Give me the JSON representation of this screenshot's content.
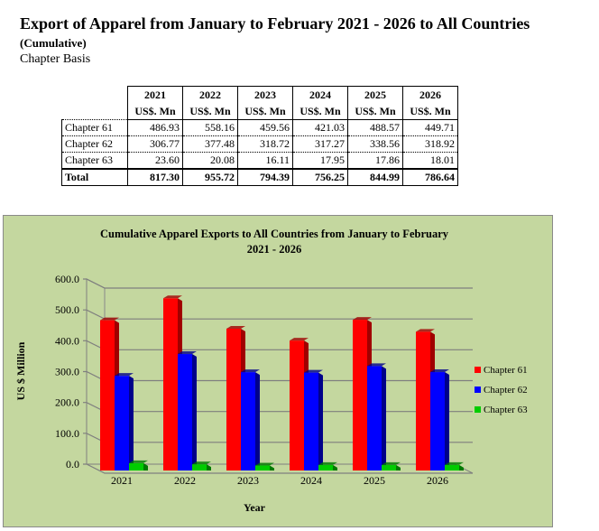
{
  "header": {
    "title": "Export of Apparel from January to February 2021 - 2026 to All Countries",
    "subtitle": "(Cumulative)",
    "basis": "Chapter Basis"
  },
  "table": {
    "years": [
      "2021",
      "2022",
      "2023",
      "2024",
      "2025",
      "2026"
    ],
    "unit": "US$. Mn",
    "rows": [
      {
        "label": "Chapter 61",
        "values": [
          "486.93",
          "558.16",
          "459.56",
          "421.03",
          "488.57",
          "449.71"
        ]
      },
      {
        "label": "Chapter 62",
        "values": [
          "306.77",
          "377.48",
          "318.72",
          "317.27",
          "338.56",
          "318.92"
        ]
      },
      {
        "label": "Chapter 63",
        "values": [
          "23.60",
          "20.08",
          "16.11",
          "17.95",
          "17.86",
          "18.01"
        ]
      }
    ],
    "total": {
      "label": "Total",
      "values": [
        "817.30",
        "955.72",
        "794.39",
        "756.25",
        "844.99",
        "786.64"
      ]
    }
  },
  "chart_data": {
    "type": "bar",
    "title": "Cumulative Apparel Exports to All Countries from January to February",
    "title2": "2021 - 2026",
    "xlabel": "Year",
    "ylabel": "US $ Million",
    "ylim": [
      0,
      600
    ],
    "yticks": [
      "0.0",
      "100.0",
      "200.0",
      "300.0",
      "400.0",
      "500.0",
      "600.0"
    ],
    "categories": [
      "2021",
      "2022",
      "2023",
      "2024",
      "2025",
      "2026"
    ],
    "legend_position": "right",
    "series": [
      {
        "name": "Chapter 61",
        "color": "#ff0000",
        "side": "#a00000",
        "values": [
          486.93,
          558.16,
          459.56,
          421.03,
          488.57,
          449.71
        ]
      },
      {
        "name": "Chapter 62",
        "color": "#0000ff",
        "side": "#00008a",
        "values": [
          306.77,
          377.48,
          318.72,
          317.27,
          338.56,
          318.92
        ]
      },
      {
        "name": "Chapter 63",
        "color": "#00cc00",
        "side": "#007a00",
        "values": [
          23.6,
          20.08,
          16.11,
          17.95,
          17.86,
          18.01
        ]
      }
    ]
  }
}
